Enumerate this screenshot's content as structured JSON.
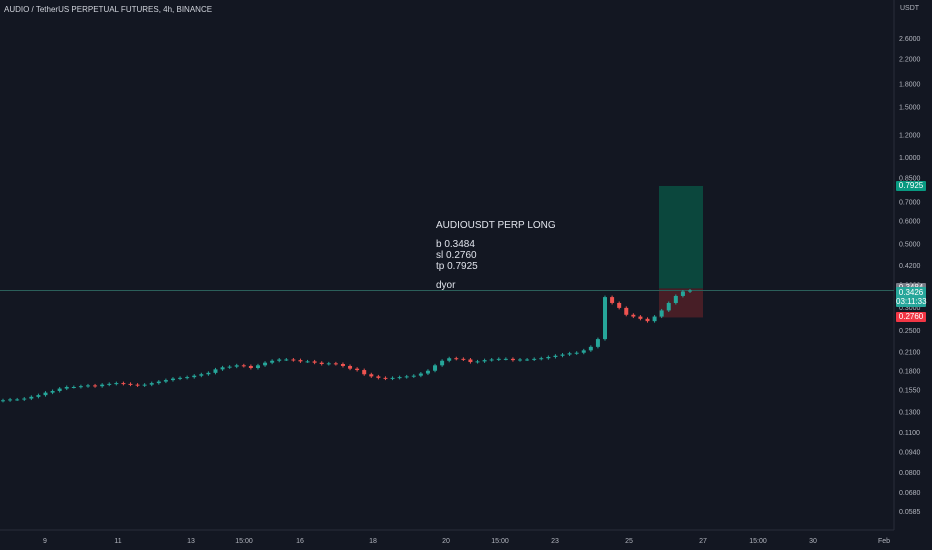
{
  "header": {
    "title": "AUDIO / TetherUS PERPETUAL FUTURES, 4h, BINANCE"
  },
  "colors": {
    "background": "#131722",
    "up": "#26a69a",
    "down": "#ef5350",
    "profit_zone": "#0b4a3f",
    "loss_zone": "#4a1f27",
    "text": "#d1d4dc",
    "entry_line": "#2b5f5a"
  },
  "annotation": {
    "title": "AUDIOUSDT PERP LONG",
    "buy": "b 0.3484",
    "stop": "sl 0.2760",
    "target": "tp 0.7925",
    "footer": "dyor"
  },
  "price_tags": {
    "target": "0.7925",
    "entry": "0.3484",
    "current": "0.3426",
    "countdown": "03:11:33",
    "stop": "0.2760"
  },
  "chart_data": {
    "type": "candlestick",
    "scale": "log",
    "currency": "USDT",
    "y_ticks": [
      2.6,
      2.2,
      1.8,
      1.5,
      1.2,
      1.0,
      0.85,
      0.7,
      0.6,
      0.5,
      0.42,
      0.36,
      0.3,
      0.25,
      0.21,
      0.18,
      0.155,
      0.13,
      0.11,
      0.094,
      0.08,
      0.068,
      0.0585
    ],
    "y_tick_labels": [
      "2.6000",
      "2.2000",
      "1.8000",
      "1.5000",
      "1.2000",
      "1.0000",
      "0.8500",
      "0.7000",
      "0.6000",
      "0.5000",
      "0.4200",
      "0.3600",
      "0.3000",
      "0.2500",
      "0.2100",
      "0.1800",
      "0.1550",
      "0.1300",
      "0.1100",
      "0.0940",
      "0.0800",
      "0.0680",
      "0.0585"
    ],
    "x_tick_labels": [
      "9",
      "11",
      "13",
      "15:00",
      "16",
      "18",
      "20",
      "15:00",
      "23",
      "25",
      "27",
      "15:00",
      "30",
      "Feb"
    ],
    "closes": [
      0.142,
      0.143,
      0.143,
      0.144,
      0.146,
      0.148,
      0.151,
      0.153,
      0.156,
      0.158,
      0.158,
      0.159,
      0.16,
      0.159,
      0.161,
      0.162,
      0.163,
      0.162,
      0.161,
      0.16,
      0.161,
      0.163,
      0.165,
      0.167,
      0.169,
      0.17,
      0.171,
      0.173,
      0.175,
      0.177,
      0.182,
      0.185,
      0.186,
      0.188,
      0.187,
      0.184,
      0.188,
      0.192,
      0.195,
      0.197,
      0.197,
      0.196,
      0.194,
      0.194,
      0.192,
      0.19,
      0.191,
      0.19,
      0.187,
      0.183,
      0.181,
      0.175,
      0.172,
      0.17,
      0.169,
      0.17,
      0.171,
      0.172,
      0.173,
      0.176,
      0.18,
      0.188,
      0.195,
      0.199,
      0.198,
      0.197,
      0.193,
      0.194,
      0.196,
      0.197,
      0.198,
      0.198,
      0.196,
      0.197,
      0.197,
      0.198,
      0.199,
      0.201,
      0.203,
      0.205,
      0.207,
      0.208,
      0.212,
      0.218,
      0.232,
      0.325,
      0.31,
      0.298,
      0.282,
      0.278,
      0.273,
      0.268,
      0.278,
      0.292,
      0.31,
      0.328,
      0.34,
      0.3426
    ],
    "entry": 0.3484,
    "stop_loss": 0.276,
    "take_profit": 0.7925,
    "current_price": 0.3426
  }
}
